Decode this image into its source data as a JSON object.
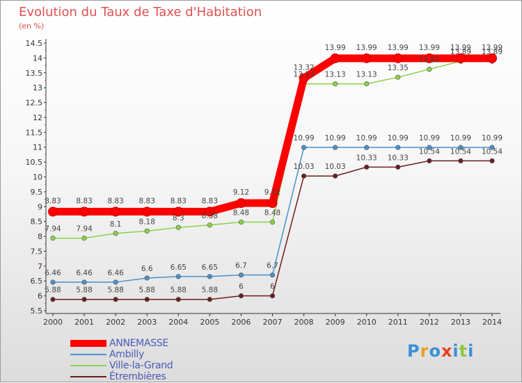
{
  "title": "Evolution du Taux de Taxe d'Habitation",
  "subtitle": "(en %)",
  "logo": {
    "text": "Proxiti",
    "colors": [
      "#3a8fd8",
      "#e8a020",
      "#3a8fd8",
      "#e84020",
      "#3a8fd8",
      "#8cc83c",
      "#3a8fd8"
    ]
  },
  "chart_data": {
    "type": "line",
    "x": [
      "2000",
      "2001",
      "2002",
      "2003",
      "2004",
      "2005",
      "2006",
      "2007",
      "2008",
      "2009",
      "2010",
      "2011",
      "2012",
      "2013",
      "2014"
    ],
    "ylim": [
      5.5,
      14.5
    ],
    "yticks": [
      "5.5",
      "6",
      "6.5",
      "7",
      "7.5",
      "8",
      "8.5",
      "9",
      "9.5",
      "10",
      "10.5",
      "11",
      "11.5",
      "12",
      "12.5",
      "13",
      "13.5",
      "14",
      "14.5"
    ],
    "grid": false,
    "legend_position": "bottom-left",
    "series": [
      {
        "name": "ANNEMASSE",
        "color": "#ff0000",
        "values": [
          8.83,
          8.83,
          8.83,
          8.83,
          8.83,
          8.83,
          9.12,
          9.12,
          13.32,
          13.99,
          13.99,
          13.99,
          13.99,
          13.99,
          13.99
        ],
        "labels": [
          "8.83",
          "8.83",
          "8.83",
          "8.83",
          "8.83",
          "8.83",
          "9.12",
          "9.12",
          "13.32",
          "13.99",
          "13.99",
          "13.99",
          "13.99",
          "13.99",
          "13.99"
        ]
      },
      {
        "name": "Ambilly",
        "color": "#4a90c8",
        "values": [
          6.46,
          6.46,
          6.46,
          6.6,
          6.65,
          6.65,
          6.7,
          6.7,
          10.99,
          10.99,
          10.99,
          10.99,
          10.99,
          10.99,
          10.99
        ],
        "labels": [
          "6.46",
          "6.46",
          "6.46",
          "6.6",
          "6.65",
          "6.65",
          "6.7",
          "6.7",
          "10.99",
          "10.99",
          "10.99",
          "10.99",
          "10.99",
          "10.99",
          "10.99"
        ]
      },
      {
        "name": "Ville-la-Grand",
        "color": "#8cd048",
        "values": [
          7.94,
          7.94,
          8.1,
          8.18,
          8.3,
          8.38,
          8.48,
          8.48,
          13.13,
          13.13,
          13.13,
          13.35,
          13.62,
          13.89,
          13.89
        ],
        "labels": [
          "7.94",
          "7.94",
          "8.1",
          "8.18",
          "8.3",
          "8.38",
          "8.48",
          "8.48",
          "13.13",
          "13.13",
          "13.13",
          "13.35",
          "13.62",
          "13.89",
          "13.89"
        ]
      },
      {
        "name": "Étrembières",
        "color": "#6a1e1e",
        "values": [
          5.88,
          5.88,
          5.88,
          5.88,
          5.88,
          5.88,
          6,
          6,
          10.03,
          10.03,
          10.33,
          10.33,
          10.54,
          10.54,
          10.54
        ],
        "labels": [
          "5.88",
          "5.88",
          "5.88",
          "5.88",
          "5.88",
          "5.88",
          "6",
          "6",
          "10.03",
          "10.03",
          "10.33",
          "10.33",
          "10.54",
          "10.54",
          "10.54"
        ]
      }
    ]
  }
}
